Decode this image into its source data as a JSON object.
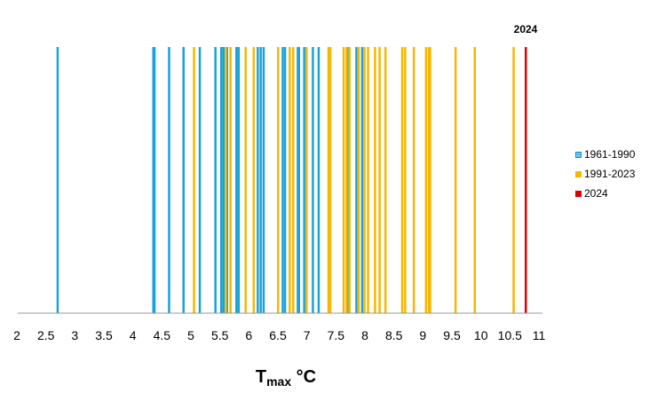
{
  "chart_data": {
    "type": "bar",
    "xlabel_main": "T",
    "xlabel_sub": "max",
    "xlabel_unit": " °C",
    "xlim": [
      2,
      11
    ],
    "x_ticks": [
      "2",
      "2.5",
      "3",
      "3.5",
      "4",
      "4.5",
      "5",
      "5.5",
      "6",
      "6.5",
      "7",
      "7.5",
      "8",
      "8.5",
      "9",
      "9.5",
      "10",
      "10.5",
      "11"
    ],
    "annotation": "2024",
    "series": [
      {
        "name": "1961-1990",
        "color": "#1aa2d9",
        "values": [
          2.7,
          4.35,
          4.37,
          4.62,
          4.87,
          5.15,
          5.42,
          5.52,
          5.56,
          5.62,
          5.78,
          5.82,
          6.15,
          6.2,
          6.25,
          6.58,
          6.62,
          6.84,
          6.86,
          6.95,
          7.1,
          7.2,
          7.7,
          7.85,
          7.95
        ]
      },
      {
        "name": "1991-2023",
        "color": "#f7b700",
        "values": [
          5.05,
          5.6,
          5.68,
          5.94,
          6.08,
          6.5,
          6.7,
          6.76,
          6.99,
          7.37,
          7.4,
          7.63,
          7.68,
          7.73,
          7.89,
          7.99,
          8.05,
          8.17,
          8.25,
          8.35,
          8.64,
          8.69,
          8.84,
          9.05,
          9.1,
          9.12,
          9.56,
          9.89,
          10.56
        ]
      },
      {
        "name": "2024",
        "color": "#e00000",
        "values": [
          10.77
        ]
      }
    ]
  }
}
